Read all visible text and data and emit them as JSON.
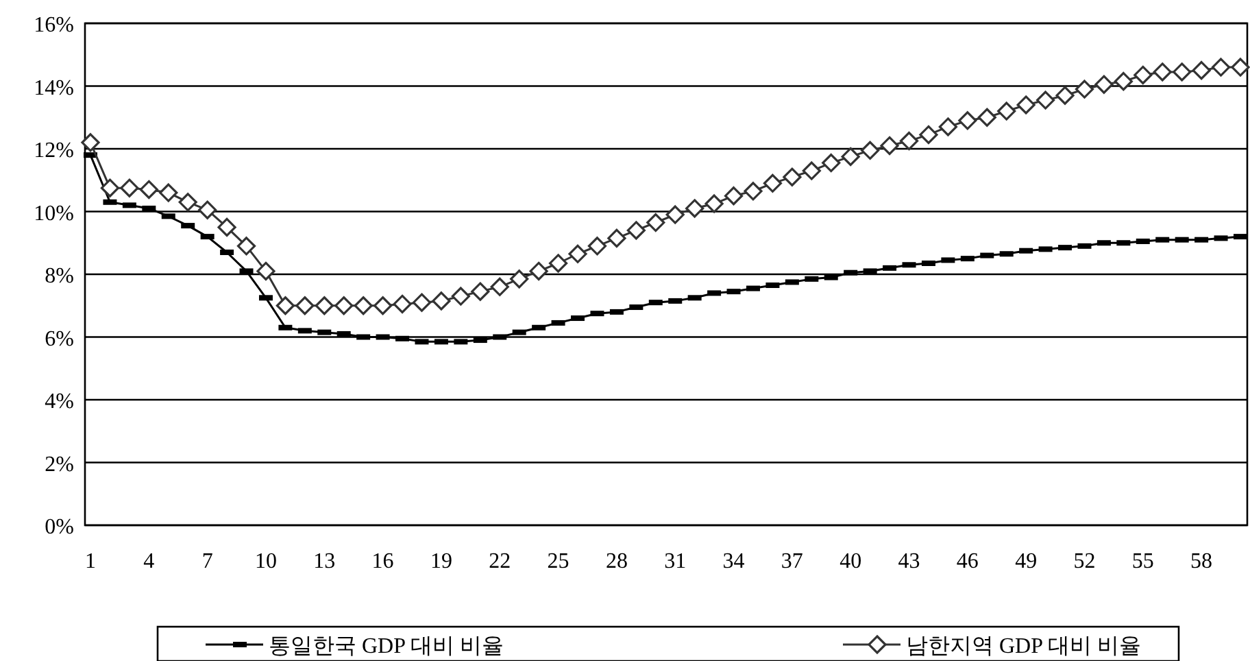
{
  "chart_data": {
    "type": "line",
    "categories": [
      "1",
      null,
      null,
      "4",
      null,
      null,
      "7",
      null,
      null,
      "10",
      null,
      null,
      "13",
      null,
      null,
      "16",
      null,
      null,
      "19",
      null,
      null,
      "22",
      null,
      null,
      "25",
      null,
      null,
      "28",
      null,
      null,
      "31",
      null,
      null,
      "34",
      null,
      null,
      "37",
      null,
      null,
      "40",
      null,
      null,
      "43",
      null,
      null,
      "46",
      null,
      null,
      "49",
      null,
      null,
      "52",
      null,
      null,
      "55",
      null,
      null,
      "58",
      null,
      null
    ],
    "series": [
      {
        "name": "통일한국 GDP 대비 비율",
        "color": "#000000",
        "marker": "square",
        "values": [
          11.8,
          10.3,
          10.2,
          10.1,
          9.85,
          9.55,
          9.2,
          8.7,
          8.1,
          7.25,
          6.3,
          6.2,
          6.15,
          6.1,
          6.0,
          6.0,
          5.95,
          5.85,
          5.85,
          5.85,
          5.9,
          6.0,
          6.15,
          6.3,
          6.45,
          6.6,
          6.75,
          6.8,
          6.95,
          7.1,
          7.15,
          7.25,
          7.4,
          7.45,
          7.55,
          7.65,
          7.75,
          7.85,
          7.9,
          8.05,
          8.1,
          8.2,
          8.3,
          8.35,
          8.45,
          8.5,
          8.6,
          8.65,
          8.75,
          8.8,
          8.85,
          8.9,
          9.0,
          9.0,
          9.05,
          9.1,
          9.1,
          9.1,
          9.15,
          9.2
        ]
      },
      {
        "name": "남한지역 GDP 대비 비율",
        "color": "#333333",
        "marker": "diamond",
        "values": [
          12.2,
          10.75,
          10.75,
          10.7,
          10.6,
          10.3,
          10.05,
          9.5,
          8.9,
          8.1,
          7.0,
          7.0,
          7.0,
          7.0,
          7.0,
          7.0,
          7.05,
          7.1,
          7.15,
          7.3,
          7.45,
          7.6,
          7.85,
          8.1,
          8.35,
          8.65,
          8.9,
          9.15,
          9.4,
          9.65,
          9.9,
          10.1,
          10.25,
          10.5,
          10.65,
          10.9,
          11.1,
          11.3,
          11.55,
          11.75,
          11.95,
          12.1,
          12.25,
          12.45,
          12.7,
          12.9,
          13.0,
          13.2,
          13.4,
          13.55,
          13.7,
          13.9,
          14.05,
          14.15,
          14.35,
          14.45,
          14.45,
          14.5,
          14.6,
          14.6
        ]
      }
    ],
    "ylim": [
      0,
      16
    ],
    "yticks": [
      {
        "value": 0,
        "label": "0%"
      },
      {
        "value": 2,
        "label": "2%"
      },
      {
        "value": 4,
        "label": "4%"
      },
      {
        "value": 6,
        "label": "6%"
      },
      {
        "value": 8,
        "label": "8%"
      },
      {
        "value": 10,
        "label": "10%"
      },
      {
        "value": 12,
        "label": "12%"
      },
      {
        "value": 14,
        "label": "14%"
      },
      {
        "value": 16,
        "label": "16%"
      }
    ],
    "grid": "y",
    "legend": "bottom",
    "line_style": "solid"
  }
}
